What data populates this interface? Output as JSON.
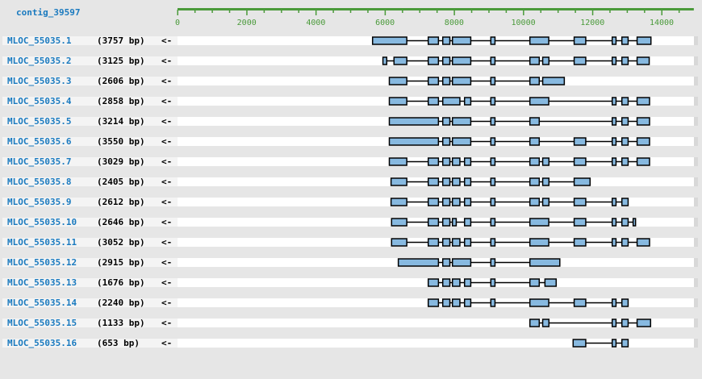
{
  "contig": "contig_39597",
  "axis": {
    "min": 0,
    "max": 14930,
    "major_step": 2000,
    "minor_step": 500,
    "labels": [
      "0",
      "2000",
      "4000",
      "6000",
      "8000",
      "10000",
      "12000",
      "14000"
    ]
  },
  "colors": {
    "exon_fill": "#87b9e0",
    "exon_stroke": "#000000",
    "axis": "#4a9a3a",
    "link": "#1a7abf"
  },
  "transcripts": [
    {
      "name": "MLOC_55035.1",
      "length": "(3757 bp)",
      "strand": "<-",
      "exons": [
        [
          5640,
          6630
        ],
        [
          7250,
          7545
        ],
        [
          7670,
          7875
        ],
        [
          7950,
          8480
        ],
        [
          9060,
          9180
        ],
        [
          10190,
          10735
        ],
        [
          11470,
          11805
        ],
        [
          12570,
          12680
        ],
        [
          12850,
          13030
        ],
        [
          13290,
          13690
        ]
      ]
    },
    {
      "name": "MLOC_55035.2",
      "length": "(3125 bp)",
      "strand": "<-",
      "exons": [
        [
          5940,
          6050
        ],
        [
          6260,
          6630
        ],
        [
          7250,
          7545
        ],
        [
          7670,
          7875
        ],
        [
          7950,
          8480
        ],
        [
          9060,
          9180
        ],
        [
          10190,
          10460
        ],
        [
          10560,
          10740
        ],
        [
          11470,
          11805
        ],
        [
          12570,
          12680
        ],
        [
          12850,
          13030
        ],
        [
          13290,
          13640
        ]
      ]
    },
    {
      "name": "MLOC_55035.3",
      "length": "(2606 bp)",
      "strand": "<-",
      "exons": [
        [
          6125,
          6630
        ],
        [
          7250,
          7545
        ],
        [
          7670,
          7875
        ],
        [
          7950,
          8480
        ],
        [
          9060,
          9180
        ],
        [
          10190,
          10460
        ],
        [
          10560,
          11185
        ]
      ]
    },
    {
      "name": "MLOC_55035.4",
      "length": "(2858 bp)",
      "strand": "<-",
      "exons": [
        [
          6125,
          6630
        ],
        [
          7250,
          7545
        ],
        [
          7670,
          8165
        ],
        [
          8300,
          8480
        ],
        [
          9060,
          9180
        ],
        [
          10190,
          10735
        ],
        [
          12570,
          12680
        ],
        [
          12850,
          13030
        ],
        [
          13290,
          13650
        ]
      ]
    },
    {
      "name": "MLOC_55035.5",
      "length": "(3214 bp)",
      "strand": "<-",
      "exons": [
        [
          6125,
          7545
        ],
        [
          7670,
          7875
        ],
        [
          7950,
          8480
        ],
        [
          9060,
          9180
        ],
        [
          10190,
          10460
        ],
        [
          12570,
          12680
        ],
        [
          12850,
          13030
        ],
        [
          13290,
          13650
        ]
      ]
    },
    {
      "name": "MLOC_55035.6",
      "length": "(3550 bp)",
      "strand": "<-",
      "exons": [
        [
          6125,
          7545
        ],
        [
          7670,
          7875
        ],
        [
          7950,
          8480
        ],
        [
          9060,
          9180
        ],
        [
          10190,
          10460
        ],
        [
          11470,
          11805
        ],
        [
          12570,
          12680
        ],
        [
          12850,
          13030
        ],
        [
          13290,
          13650
        ]
      ]
    },
    {
      "name": "MLOC_55035.7",
      "length": "(3029 bp)",
      "strand": "<-",
      "exons": [
        [
          6125,
          6630
        ],
        [
          7250,
          7545
        ],
        [
          7670,
          7875
        ],
        [
          7950,
          8165
        ],
        [
          8300,
          8480
        ],
        [
          9060,
          9180
        ],
        [
          10190,
          10460
        ],
        [
          10560,
          10740
        ],
        [
          11470,
          11805
        ],
        [
          12570,
          12680
        ],
        [
          12850,
          13030
        ],
        [
          13290,
          13650
        ]
      ]
    },
    {
      "name": "MLOC_55035.8",
      "length": "(2405 bp)",
      "strand": "<-",
      "exons": [
        [
          6175,
          6630
        ],
        [
          7250,
          7545
        ],
        [
          7670,
          7875
        ],
        [
          7950,
          8165
        ],
        [
          8300,
          8480
        ],
        [
          9060,
          9180
        ],
        [
          10190,
          10460
        ],
        [
          10560,
          10740
        ],
        [
          11470,
          11930
        ]
      ]
    },
    {
      "name": "MLOC_55035.9",
      "length": "(2612 bp)",
      "strand": "<-",
      "exons": [
        [
          6175,
          6630
        ],
        [
          7250,
          7545
        ],
        [
          7670,
          7875
        ],
        [
          7950,
          8165
        ],
        [
          8300,
          8480
        ],
        [
          9060,
          9180
        ],
        [
          10190,
          10460
        ],
        [
          10560,
          10740
        ],
        [
          11470,
          11805
        ],
        [
          12570,
          12680
        ],
        [
          12850,
          13030
        ]
      ]
    },
    {
      "name": "MLOC_55035.10",
      "length": "(2646 bp)",
      "strand": "<-",
      "exons": [
        [
          6190,
          6630
        ],
        [
          7250,
          7545
        ],
        [
          7670,
          7875
        ],
        [
          7950,
          8060
        ],
        [
          8300,
          8480
        ],
        [
          9060,
          9180
        ],
        [
          10190,
          10735
        ],
        [
          11470,
          11805
        ],
        [
          12570,
          12680
        ],
        [
          12850,
          13030
        ],
        [
          13175,
          13245
        ]
      ]
    },
    {
      "name": "MLOC_55035.11",
      "length": "(3052 bp)",
      "strand": "<-",
      "exons": [
        [
          6190,
          6630
        ],
        [
          7250,
          7545
        ],
        [
          7670,
          7875
        ],
        [
          7950,
          8165
        ],
        [
          8300,
          8480
        ],
        [
          9060,
          9180
        ],
        [
          10190,
          10735
        ],
        [
          11470,
          11805
        ],
        [
          12570,
          12680
        ],
        [
          12850,
          13030
        ],
        [
          13290,
          13650
        ]
      ]
    },
    {
      "name": "MLOC_55035.12",
      "length": "(2915 bp)",
      "strand": "<-",
      "exons": [
        [
          6385,
          7545
        ],
        [
          7670,
          7875
        ],
        [
          7950,
          8480
        ],
        [
          9060,
          9180
        ],
        [
          10190,
          11055
        ]
      ]
    },
    {
      "name": "MLOC_55035.13",
      "length": "(1676 bp)",
      "strand": "<-",
      "exons": [
        [
          7250,
          7545
        ],
        [
          7670,
          7875
        ],
        [
          7950,
          8165
        ],
        [
          8300,
          8480
        ],
        [
          9060,
          9180
        ],
        [
          10190,
          10460
        ],
        [
          10625,
          10950
        ]
      ]
    },
    {
      "name": "MLOC_55035.14",
      "length": "(2240 bp)",
      "strand": "<-",
      "exons": [
        [
          7250,
          7545
        ],
        [
          7670,
          7875
        ],
        [
          7950,
          8165
        ],
        [
          8300,
          8480
        ],
        [
          9060,
          9180
        ],
        [
          10190,
          10735
        ],
        [
          11470,
          11805
        ],
        [
          12570,
          12680
        ],
        [
          12850,
          13030
        ]
      ]
    },
    {
      "name": "MLOC_55035.15",
      "length": "(1133 bp)",
      "strand": "<-",
      "exons": [
        [
          10190,
          10460
        ],
        [
          10560,
          10740
        ],
        [
          12570,
          12680
        ],
        [
          12850,
          13030
        ],
        [
          13290,
          13680
        ]
      ]
    },
    {
      "name": "MLOC_55035.16",
      "length": "(653 bp)",
      "strand": "<-",
      "exons": [
        [
          11440,
          11805
        ],
        [
          12570,
          12680
        ],
        [
          12850,
          13030
        ]
      ]
    }
  ]
}
